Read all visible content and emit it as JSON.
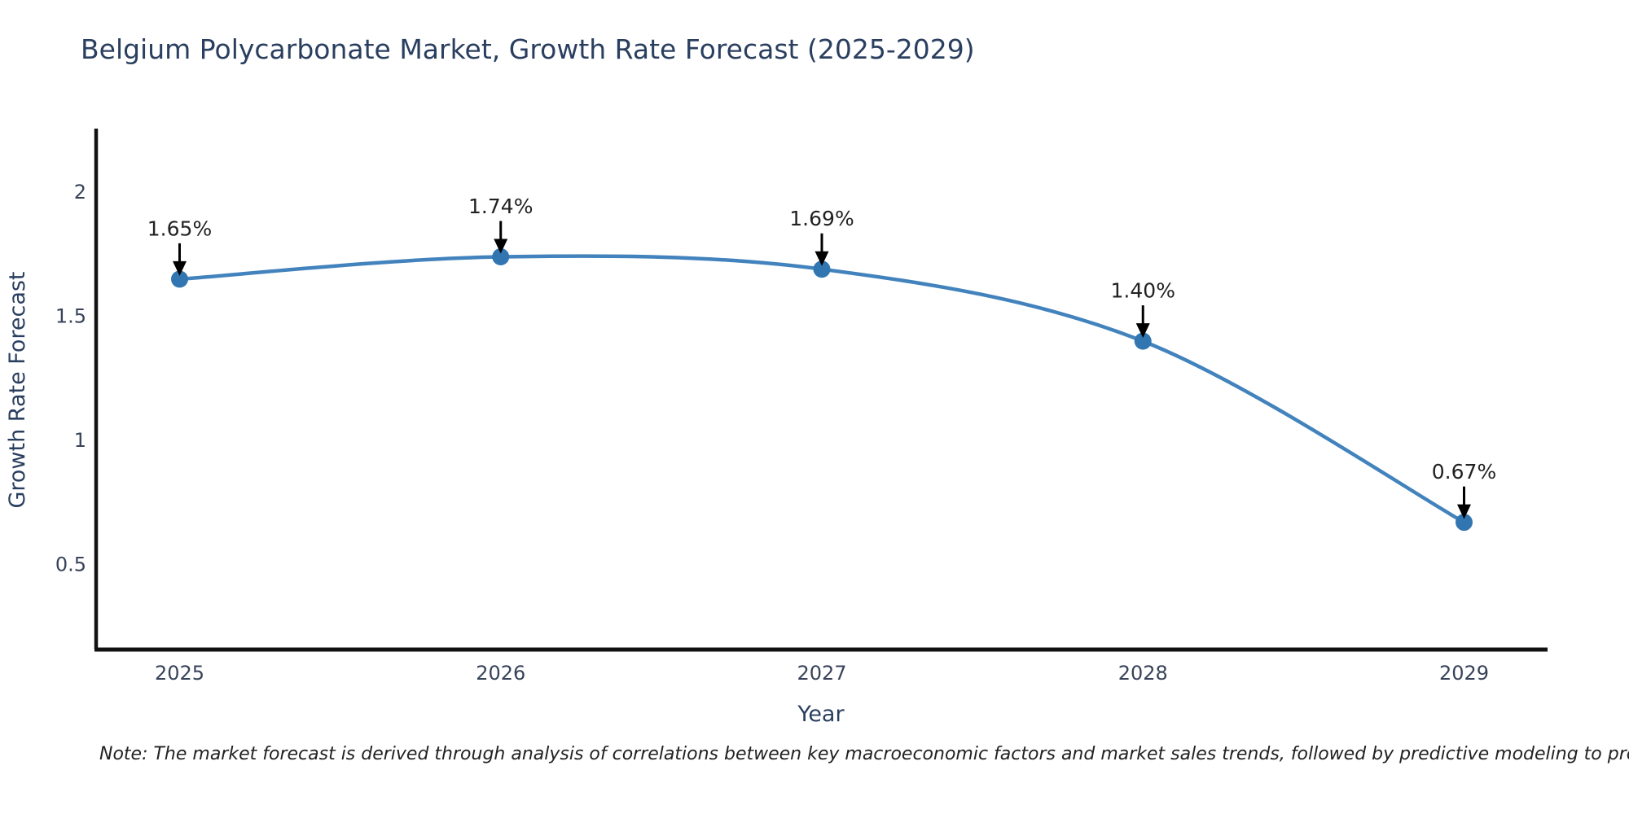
{
  "title": "Belgium Polycarbonate Market, Growth Rate Forecast (2025-2029)",
  "note": "Note: The market forecast is derived through analysis of correlations between key macroeconomic factors and market sales trends, followed by predictive modeling to project future sales",
  "chart_data": {
    "type": "line",
    "title": "Belgium Polycarbonate Market, Growth Rate Forecast (2025-2029)",
    "xlabel": "Year",
    "ylabel": "Growth Rate Forecast",
    "categories": [
      "2025",
      "2026",
      "2027",
      "2028",
      "2029"
    ],
    "x": [
      2025,
      2026,
      2027,
      2028,
      2029
    ],
    "values": [
      1.65,
      1.74,
      1.69,
      1.4,
      0.67
    ],
    "point_labels": [
      "1.65%",
      "1.74%",
      "1.69%",
      "1.40%",
      "0.67%"
    ],
    "yticks": [
      0.5,
      1,
      1.5,
      2
    ],
    "ytick_labels": [
      "0.5",
      "1",
      "1.5",
      "2"
    ],
    "ylim": [
      0.157,
      2.25
    ],
    "xlim": [
      2024.74,
      2029.26
    ],
    "grid": false,
    "legend": "none",
    "line_shape": "spline",
    "colors": {
      "line": "#4383bd",
      "marker": "#3276b1",
      "axis": "#111111",
      "tick_text": "#38435a",
      "axis_title_text": "#2a3f5f",
      "annotation_text": "#222222",
      "annotation_arrow": "#000000"
    }
  }
}
